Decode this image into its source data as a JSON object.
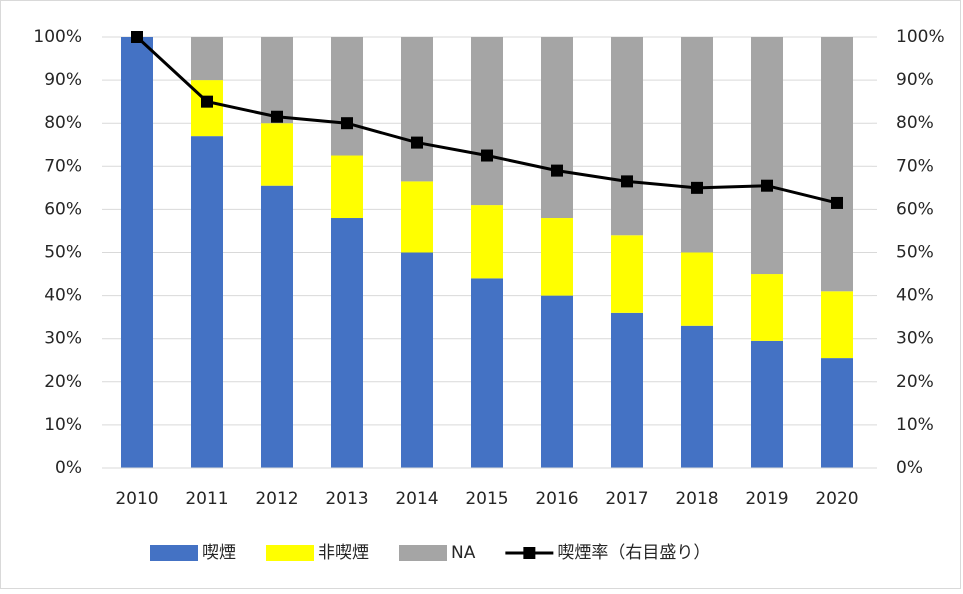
{
  "chart_data": {
    "type": "bar",
    "stacked": true,
    "categories": [
      "2010",
      "2011",
      "2012",
      "2013",
      "2014",
      "2015",
      "2016",
      "2017",
      "2018",
      "2019",
      "2020"
    ],
    "series": [
      {
        "name": "喫煙",
        "color": "#4472c4",
        "values": [
          100,
          77,
          65.5,
          58,
          50,
          44,
          40,
          36,
          33,
          29.5,
          25.5
        ]
      },
      {
        "name": "非喫煙",
        "color": "#ffff00",
        "values": [
          0,
          13,
          14.5,
          14.5,
          16.5,
          17,
          18,
          18,
          17,
          15.5,
          15.5
        ]
      },
      {
        "name": "NA",
        "color": "#a5a5a5",
        "values": [
          0,
          10,
          20,
          27.5,
          33.5,
          39,
          42,
          46,
          50,
          55,
          59
        ]
      },
      {
        "name": "喫煙率（右目盛り）",
        "type": "line",
        "axis": "y2",
        "color": "#000000",
        "values": [
          100,
          85,
          81.5,
          80,
          75.5,
          72.5,
          69,
          66.5,
          65,
          65.5,
          61.5
        ]
      }
    ],
    "ylim": [
      0,
      100
    ],
    "yticks": [
      {
        "value": 0,
        "label": "0%"
      },
      {
        "value": 10,
        "label": "10%"
      },
      {
        "value": 20,
        "label": "20%"
      },
      {
        "value": 30,
        "label": "30%"
      },
      {
        "value": 40,
        "label": "40%"
      },
      {
        "value": 50,
        "label": "50%"
      },
      {
        "value": 60,
        "label": "60%"
      },
      {
        "value": 70,
        "label": "70%"
      },
      {
        "value": 80,
        "label": "80%"
      },
      {
        "value": 90,
        "label": "90%"
      },
      {
        "value": 100,
        "label": "100%"
      }
    ],
    "y2lim": [
      0,
      100
    ],
    "y2ticks": [
      {
        "value": 0,
        "label": "0%"
      },
      {
        "value": 10,
        "label": "10%"
      },
      {
        "value": 20,
        "label": "20%"
      },
      {
        "value": 30,
        "label": "30%"
      },
      {
        "value": 40,
        "label": "40%"
      },
      {
        "value": 50,
        "label": "50%"
      },
      {
        "value": 60,
        "label": "60%"
      },
      {
        "value": 70,
        "label": "70%"
      },
      {
        "value": 80,
        "label": "80%"
      },
      {
        "value": 90,
        "label": "90%"
      },
      {
        "value": 100,
        "label": "100%"
      }
    ],
    "grid": true,
    "legend": "bottom"
  }
}
